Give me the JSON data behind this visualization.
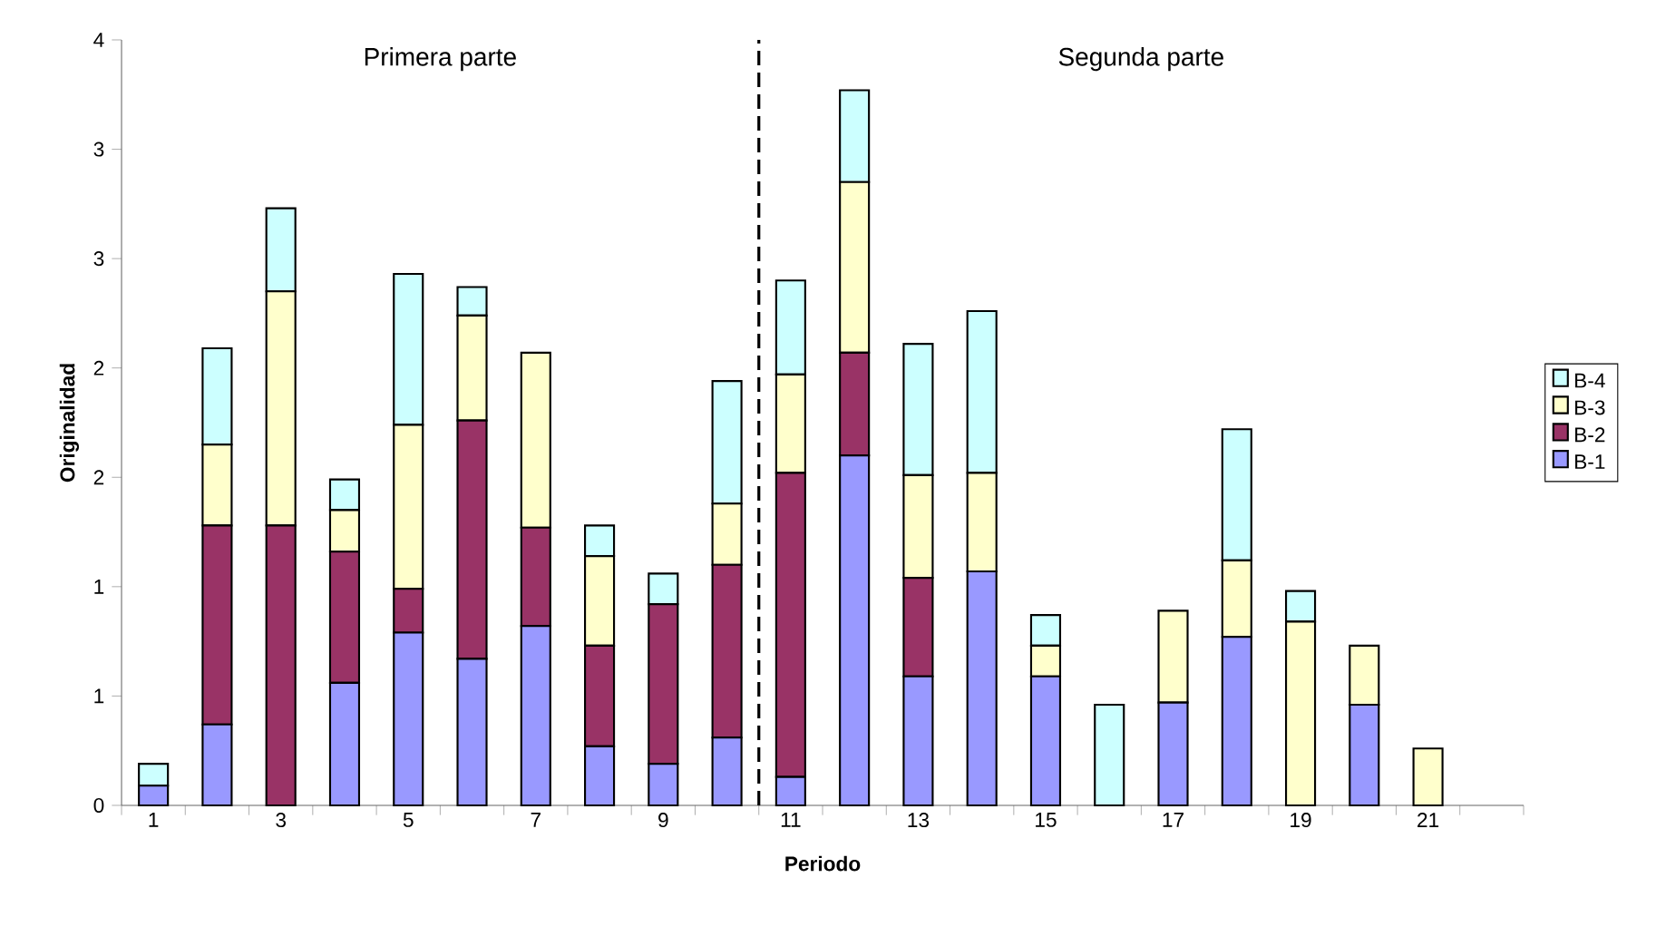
{
  "chart_data": {
    "type": "bar",
    "stacked": true,
    "x": [
      1,
      2,
      3,
      4,
      5,
      6,
      7,
      8,
      9,
      10,
      11,
      12,
      13,
      14,
      15,
      16,
      17,
      18,
      19,
      20,
      21,
      22
    ],
    "xlim": [
      0.5,
      22.5
    ],
    "xticks": [
      1,
      3,
      5,
      7,
      9,
      11,
      13,
      15,
      17,
      19,
      21,
      {
        "value": 0.5,
        "label": null
      },
      {
        "value": 1.5,
        "label": null
      },
      {
        "value": 2.5,
        "label": null
      },
      {
        "value": 3.5,
        "label": null
      },
      {
        "value": 4.5,
        "label": null
      },
      {
        "value": 5.5,
        "label": null
      },
      {
        "value": 6.5,
        "label": null
      },
      {
        "value": 7.5,
        "label": null
      },
      {
        "value": 8.5,
        "label": null
      },
      {
        "value": 9.5,
        "label": null
      },
      {
        "value": 10.5,
        "label": null
      },
      {
        "value": 11.5,
        "label": null
      },
      {
        "value": 12.5,
        "label": null
      },
      {
        "value": 13.5,
        "label": null
      },
      {
        "value": 14.5,
        "label": null
      },
      {
        "value": 15.5,
        "label": null
      },
      {
        "value": 16.5,
        "label": null
      },
      {
        "value": 17.5,
        "label": null
      },
      {
        "value": 18.5,
        "label": null
      },
      {
        "value": 19.5,
        "label": null
      },
      {
        "value": 20.5,
        "label": null
      },
      {
        "value": 21.5,
        "label": null
      },
      {
        "value": 22.5,
        "label": null
      }
    ],
    "ylim": [
      0,
      3.5
    ],
    "yticks": [
      0,
      {
        "value": 0.5,
        "label": "1"
      },
      1,
      {
        "value": 1.5,
        "label": "2"
      },
      2,
      {
        "value": 2.5,
        "label": "3"
      },
      3,
      {
        "value": 3.5,
        "label": "4"
      }
    ],
    "xlabel": "Periodo",
    "ylabel": "Originalidad",
    "legend": "right",
    "grid": false,
    "series": [
      {
        "name": "B-1",
        "color": "#9999ff",
        "values": [
          0.09,
          0.37,
          0,
          0.56,
          0.79,
          0.67,
          0.82,
          0.27,
          0.19,
          0.31,
          0.13,
          1.6,
          0.59,
          1.07,
          0.59,
          0,
          0.47,
          0.77,
          0,
          0.46,
          0,
          0
        ]
      },
      {
        "name": "B-2",
        "color": "#993366",
        "values": [
          0,
          0.91,
          1.28,
          0.6,
          0.2,
          1.09,
          0.45,
          0.46,
          0.73,
          0.79,
          1.39,
          0.47,
          0.45,
          0,
          0,
          0,
          0,
          0,
          0,
          0,
          0,
          0
        ]
      },
      {
        "name": "B-3",
        "color": "#ffffcc",
        "values": [
          0,
          0.37,
          1.07,
          0.19,
          0.75,
          0.48,
          0.8,
          0.41,
          0,
          0.28,
          0.45,
          0.78,
          0.47,
          0.45,
          0.14,
          0,
          0.42,
          0.35,
          0.84,
          0.27,
          0.26,
          0
        ]
      },
      {
        "name": "B-4",
        "color": "#ccffff",
        "values": [
          0.1,
          0.44,
          0.38,
          0.14,
          0.69,
          0.13,
          0,
          0.14,
          0.14,
          0.56,
          0.43,
          0.42,
          0.6,
          0.74,
          0.14,
          0.46,
          0,
          0.6,
          0.14,
          0,
          0,
          0
        ]
      }
    ],
    "ref_lines": [
      {
        "axis": "x",
        "value": 10.5,
        "line_style": "dashed",
        "color": "#000000"
      }
    ],
    "annotations": [
      "Primera parte",
      "Segunda parte"
    ]
  }
}
